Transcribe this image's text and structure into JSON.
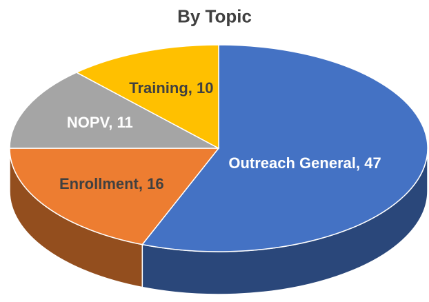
{
  "chart_data": {
    "type": "pie",
    "title": "By Topic",
    "values": [
      47,
      16,
      11,
      10
    ],
    "value_labels": [
      "Outreach General, 47",
      "Enrollment, 16",
      "NOPV, 11",
      "Training, 10"
    ],
    "colors": [
      "#4472c4",
      "#ed7d31",
      "#a5a5a5",
      "#ffc000"
    ],
    "label_colors": [
      "#ffffff",
      "#404040",
      "#ffffff",
      "#404040"
    ],
    "start_angle": 0,
    "direction": "clockwise",
    "three_d": true
  }
}
